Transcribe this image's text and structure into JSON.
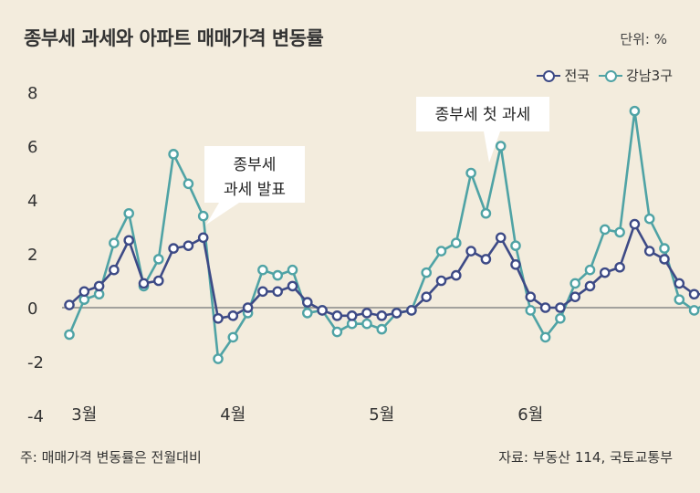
{
  "header": {
    "title": "종부세 과세와 아파트 매매가격 변동률",
    "unit": "단위: %"
  },
  "footer": {
    "note": "주: 매매가격 변동률은 전월대비",
    "source": "자료: 부동산 114, 국토교통부"
  },
  "colors": {
    "national": "#3d4a86",
    "gangnam": "#4fa3a5",
    "background": "#f3ecdd",
    "zero_line": "#888888"
  },
  "chart_data": {
    "type": "line",
    "ylim": [
      -4,
      8
    ],
    "yticks": [
      -4,
      -2,
      0,
      2,
      4,
      6,
      8
    ],
    "month_labels": [
      {
        "label": "3월",
        "index": 1
      },
      {
        "label": "4월",
        "index": 11
      },
      {
        "label": "5월",
        "index": 21
      },
      {
        "label": "6월",
        "index": 31
      }
    ],
    "legend_position": "top-right",
    "series": [
      {
        "name": "전국",
        "color": "#3d4a86",
        "values": [
          0.1,
          0.6,
          0.8,
          1.4,
          2.5,
          0.9,
          1.0,
          2.2,
          2.3,
          2.6,
          -0.4,
          -0.3,
          0.0,
          0.6,
          0.6,
          0.8,
          0.2,
          -0.1,
          -0.3,
          -0.3,
          -0.2,
          -0.3,
          -0.2,
          -0.1,
          0.4,
          1.0,
          1.2,
          2.1,
          1.8,
          2.6,
          1.6,
          0.4,
          0.0,
          0.0,
          0.4,
          0.8,
          1.3,
          1.5,
          3.1,
          2.1,
          1.8,
          0.9,
          0.5,
          0.5
        ]
      },
      {
        "name": "강남3구",
        "color": "#4fa3a5",
        "values": [
          -1.0,
          0.3,
          0.5,
          2.4,
          3.5,
          0.8,
          1.8,
          5.7,
          4.6,
          3.4,
          -1.9,
          -1.1,
          -0.2,
          1.4,
          1.2,
          1.4,
          -0.2,
          -0.1,
          -0.9,
          -0.6,
          -0.6,
          -0.8,
          -0.2,
          -0.1,
          1.3,
          2.1,
          2.4,
          5.0,
          3.5,
          6.0,
          2.3,
          -0.1,
          -1.1,
          -0.4,
          0.9,
          1.4,
          2.9,
          2.8,
          7.3,
          3.3,
          2.2,
          0.3,
          -0.1,
          0.2
        ]
      }
    ],
    "annotations": [
      {
        "lines": [
          "종부세",
          "과세 발표"
        ],
        "index": 9
      },
      {
        "lines": [
          "종부세 첫 과세"
        ],
        "index": 29
      }
    ]
  }
}
